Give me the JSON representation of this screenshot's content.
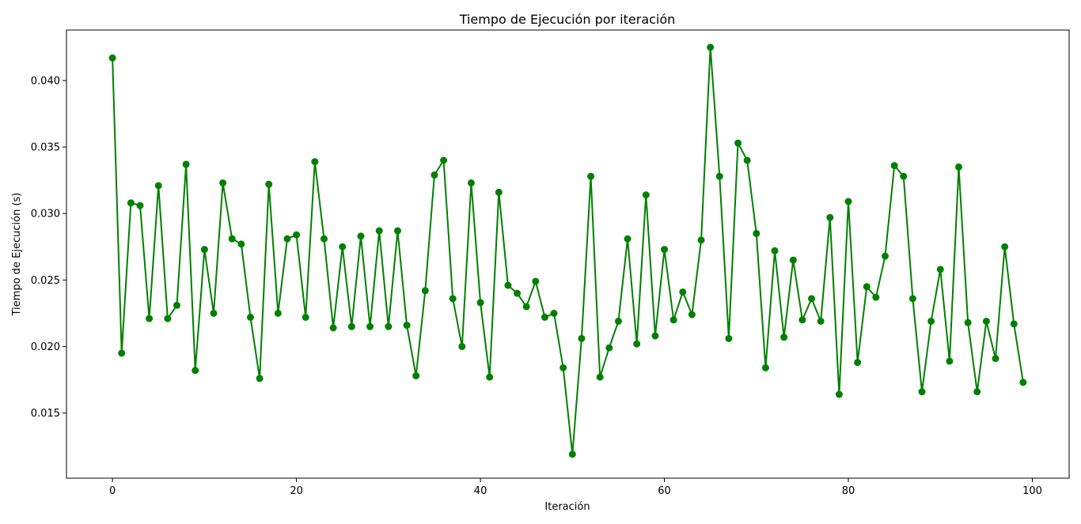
{
  "chart_data": {
    "type": "line",
    "title": "Tiempo de Ejecución por iteración",
    "xlabel": "Iteración",
    "ylabel": "Tiempo de Ejecución (s)",
    "xlim": [
      -5,
      104
    ],
    "ylim": [
      0.0101,
      0.0438
    ],
    "xticks": [
      0,
      20,
      40,
      60,
      80,
      100
    ],
    "yticks": [
      0.015,
      0.02,
      0.025,
      0.03,
      0.035,
      0.04
    ],
    "ytick_labels": [
      "0.015",
      "0.020",
      "0.025",
      "0.030",
      "0.035",
      "0.040"
    ],
    "grid": false,
    "color": "#008000",
    "marker": "circle",
    "series": [
      {
        "x": [
          0,
          1,
          2,
          3,
          4,
          5,
          6,
          7,
          8,
          9,
          10,
          11,
          12,
          13,
          14,
          15,
          16,
          17,
          18,
          19,
          20,
          21,
          22,
          23,
          24,
          25,
          26,
          27,
          28,
          29,
          30,
          31,
          32,
          33,
          34,
          35,
          36,
          37,
          38,
          39,
          40,
          41,
          42,
          43,
          44,
          45,
          46,
          47,
          48,
          49,
          50,
          51,
          52,
          53,
          54,
          55,
          56,
          57,
          58,
          59,
          60,
          61,
          62,
          63,
          64,
          65,
          66,
          67,
          68,
          69,
          70,
          71,
          72,
          73,
          74,
          75,
          76,
          77,
          78,
          79,
          80,
          81,
          82,
          83,
          84,
          85,
          86,
          87,
          88,
          89,
          90,
          91,
          92,
          93,
          94,
          95,
          96,
          97,
          98,
          99
        ],
        "values": [
          0.0417,
          0.0195,
          0.0308,
          0.0306,
          0.0221,
          0.0321,
          0.0221,
          0.0231,
          0.0337,
          0.0182,
          0.0273,
          0.0225,
          0.0323,
          0.0281,
          0.0277,
          0.0222,
          0.0176,
          0.0322,
          0.0225,
          0.0281,
          0.0284,
          0.0222,
          0.0339,
          0.0281,
          0.0214,
          0.0275,
          0.0215,
          0.0283,
          0.0215,
          0.0287,
          0.0215,
          0.0287,
          0.0216,
          0.0178,
          0.0242,
          0.0329,
          0.034,
          0.0236,
          0.02,
          0.0323,
          0.0233,
          0.0177,
          0.0316,
          0.0246,
          0.024,
          0.023,
          0.0249,
          0.0222,
          0.0225,
          0.0184,
          0.0119,
          0.0206,
          0.0328,
          0.0177,
          0.0199,
          0.0219,
          0.0281,
          0.0202,
          0.0314,
          0.0208,
          0.0273,
          0.022,
          0.0241,
          0.0224,
          0.028,
          0.0425,
          0.0328,
          0.0206,
          0.0353,
          0.034,
          0.0285,
          0.0184,
          0.0272,
          0.0207,
          0.0265,
          0.022,
          0.0236,
          0.0219,
          0.0297,
          0.0164,
          0.0309,
          0.0188,
          0.0245,
          0.0237,
          0.0268,
          0.0336,
          0.0328,
          0.0236,
          0.0166,
          0.0219,
          0.0258,
          0.0189,
          0.0335,
          0.0218,
          0.0166,
          0.0219,
          0.0191,
          0.0275,
          0.0217,
          0.0173
        ]
      }
    ]
  }
}
